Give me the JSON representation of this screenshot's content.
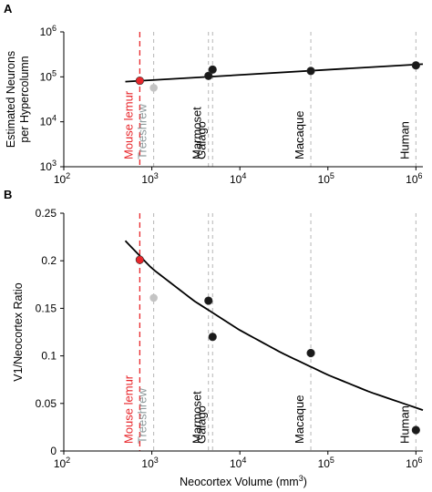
{
  "chart_data": [
    {
      "panel": "A",
      "type": "scatter",
      "ylabel_lines": [
        "Estimated Neurons",
        "per Hypercolumn"
      ],
      "xscale": "log",
      "yscale": "log",
      "xlim": [
        100,
        1200000
      ],
      "ylim": [
        1000,
        1000000
      ],
      "x_ticks": [
        {
          "base": "10",
          "exp": "2",
          "value": 100
        },
        {
          "base": "10",
          "exp": "3",
          "value": 1000
        },
        {
          "base": "10",
          "exp": "4",
          "value": 10000
        },
        {
          "base": "10",
          "exp": "5",
          "value": 100000
        },
        {
          "base": "10",
          "exp": "6",
          "value": 1000000
        }
      ],
      "y_ticks": [
        {
          "base": "10",
          "exp": "3",
          "value": 1000
        },
        {
          "base": "10",
          "exp": "4",
          "value": 10000
        },
        {
          "base": "10",
          "exp": "5",
          "value": 100000
        },
        {
          "base": "10",
          "exp": "6",
          "value": 1000000
        }
      ],
      "points": [
        {
          "x": 730,
          "y": 82000,
          "color": "#e8262b"
        },
        {
          "x": 1050,
          "y": 57000,
          "color": "#c4c4c4"
        },
        {
          "x": 4400,
          "y": 105000,
          "color": "#1a1a1a"
        },
        {
          "x": 4900,
          "y": 145000,
          "color": "#1a1a1a"
        },
        {
          "x": 64000,
          "y": 135000,
          "color": "#1a1a1a"
        },
        {
          "x": 1000000,
          "y": 180000,
          "color": "#1a1a1a"
        }
      ],
      "fit_line": [
        {
          "x": 500,
          "y": 78000
        },
        {
          "x": 1200000,
          "y": 192000
        }
      ],
      "species": [
        {
          "label": "Mouse lemur",
          "x": 730,
          "color": "#e8262b",
          "line": "red-dash"
        },
        {
          "label": "Treeshrew",
          "x": 1050,
          "color": "#8e9a9c",
          "line": "grey-dash"
        },
        {
          "label": "Marmoset",
          "x": 4400,
          "color": "#000000",
          "line": "grey-dash"
        },
        {
          "label": "Galago",
          "x": 4900,
          "color": "#000000",
          "line": "grey-dash"
        },
        {
          "label": "Macaque",
          "x": 64000,
          "color": "#000000",
          "line": "grey-dash"
        },
        {
          "label": "Human",
          "x": 1000000,
          "color": "#000000",
          "line": "grey-dash"
        }
      ]
    },
    {
      "panel": "B",
      "type": "scatter",
      "ylabel": "V1/Neocortex Ratio",
      "xlabel": "Neocortex Volume (mm",
      "xlabel_sup": "3",
      "xlabel_end": ")",
      "xscale": "log",
      "yscale": "linear",
      "xlim": [
        100,
        1200000
      ],
      "ylim": [
        0,
        0.25
      ],
      "x_ticks": [
        {
          "base": "10",
          "exp": "2",
          "value": 100
        },
        {
          "base": "10",
          "exp": "3",
          "value": 1000
        },
        {
          "base": "10",
          "exp": "4",
          "value": 10000
        },
        {
          "base": "10",
          "exp": "5",
          "value": 100000
        },
        {
          "base": "10",
          "exp": "6",
          "value": 1000000
        }
      ],
      "y_ticks": [
        {
          "label": "0",
          "value": 0
        },
        {
          "label": "0.05",
          "value": 0.05
        },
        {
          "label": "0.1",
          "value": 0.1
        },
        {
          "label": "0.15",
          "value": 0.15
        },
        {
          "label": "0.2",
          "value": 0.2
        },
        {
          "label": "0.25",
          "value": 0.25
        }
      ],
      "points": [
        {
          "x": 730,
          "y": 0.201,
          "color": "#e8262b"
        },
        {
          "x": 1050,
          "y": 0.161,
          "color": "#c4c4c4"
        },
        {
          "x": 4400,
          "y": 0.158,
          "color": "#1a1a1a"
        },
        {
          "x": 4900,
          "y": 0.12,
          "color": "#1a1a1a"
        },
        {
          "x": 64000,
          "y": 0.103,
          "color": "#1a1a1a"
        },
        {
          "x": 1000000,
          "y": 0.022,
          "color": "#1a1a1a"
        }
      ],
      "fit_curve": [
        {
          "x": 500,
          "y": 0.221
        },
        {
          "x": 1000,
          "y": 0.192
        },
        {
          "x": 3000,
          "y": 0.158
        },
        {
          "x": 10000,
          "y": 0.127
        },
        {
          "x": 30000,
          "y": 0.103
        },
        {
          "x": 100000,
          "y": 0.08
        },
        {
          "x": 300000,
          "y": 0.062
        },
        {
          "x": 1200000,
          "y": 0.043
        }
      ],
      "species": [
        {
          "label": "Mouse lemur",
          "x": 730,
          "color": "#e8262b",
          "line": "red-dash"
        },
        {
          "label": "Treeshrew",
          "x": 1050,
          "color": "#8e9a9c",
          "line": "grey-dash"
        },
        {
          "label": "Marmoset",
          "x": 4400,
          "color": "#000000",
          "line": "grey-dash"
        },
        {
          "label": "Galago",
          "x": 4900,
          "color": "#000000",
          "line": "grey-dash"
        },
        {
          "label": "Macaque",
          "x": 64000,
          "color": "#000000",
          "line": "grey-dash"
        },
        {
          "label": "Human",
          "x": 1000000,
          "color": "#000000",
          "line": "grey-dash"
        }
      ]
    }
  ]
}
